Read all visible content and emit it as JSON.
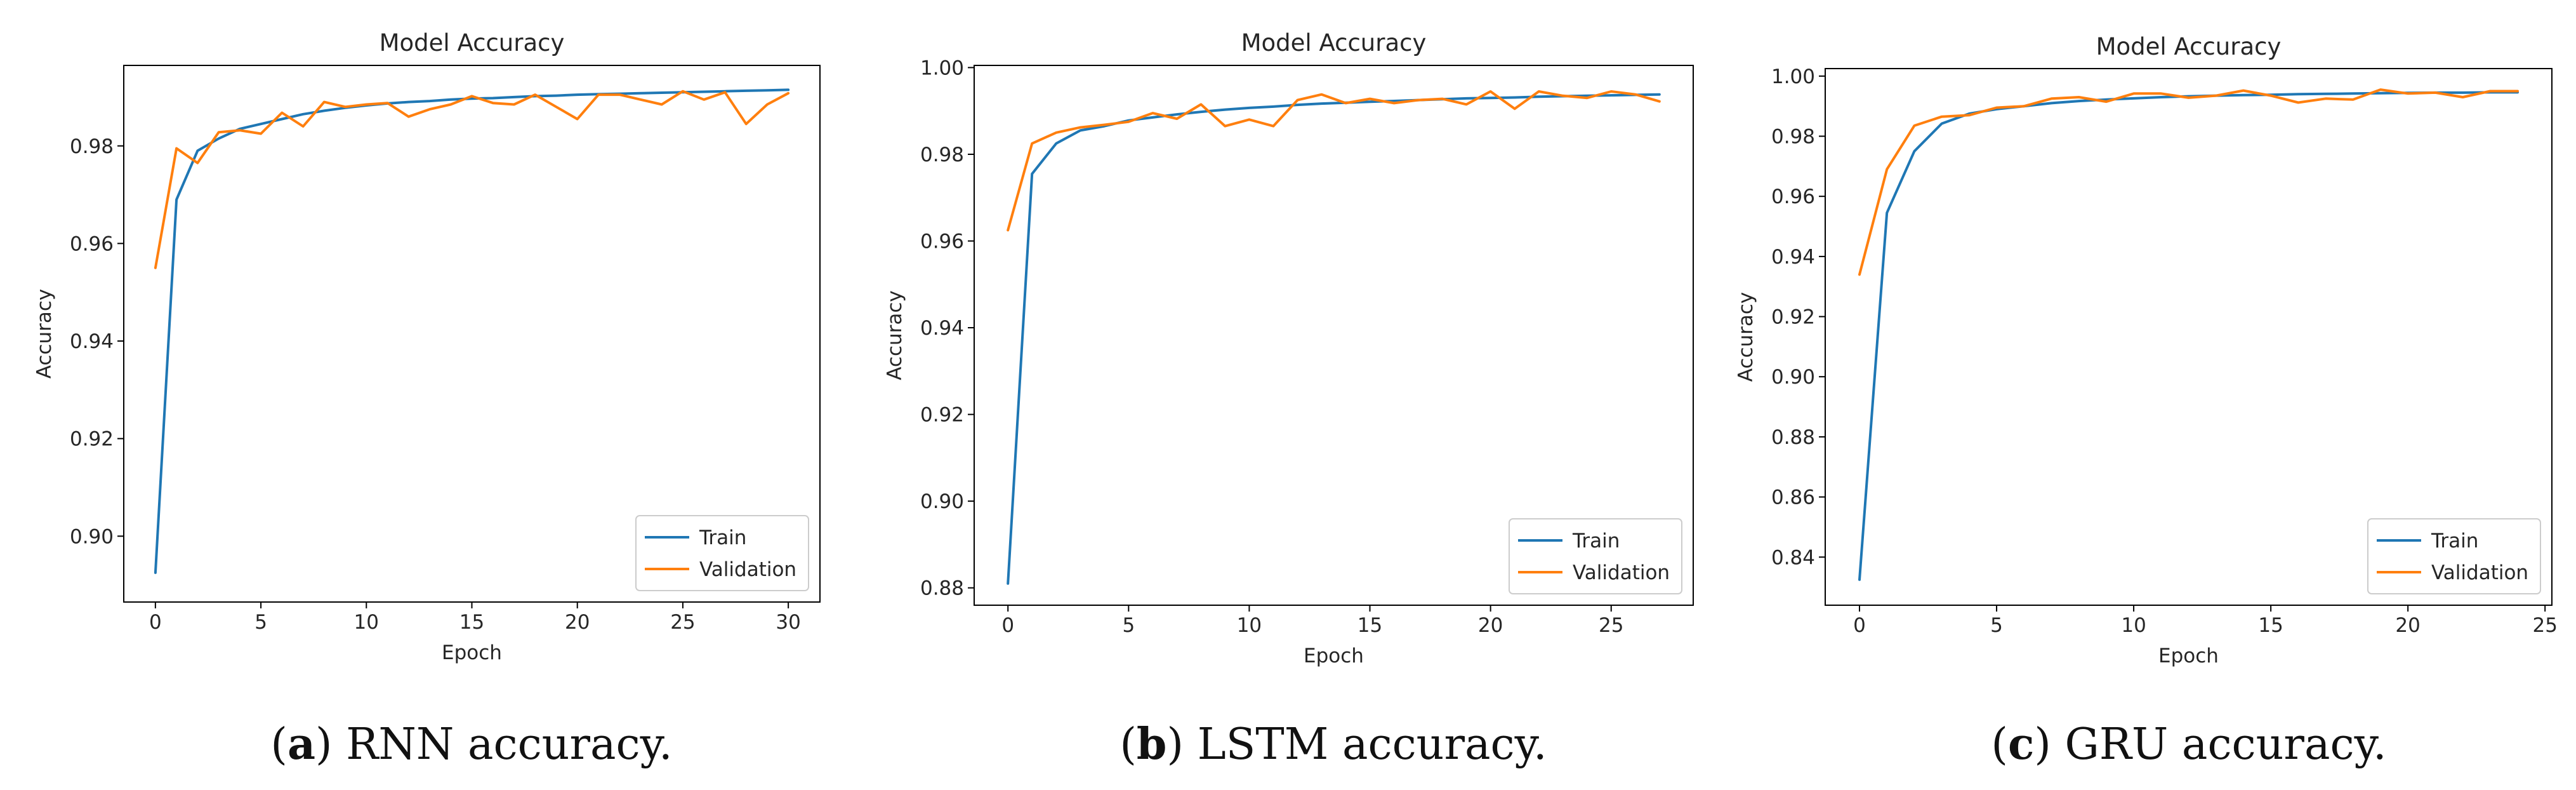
{
  "chart_data": [
    {
      "type": "line",
      "title": "Model Accuracy",
      "xlabel": "Epoch",
      "ylabel": "Accuracy",
      "xlim": [
        -1.5,
        31.5
      ],
      "ylim": [
        0.8865,
        0.9965
      ],
      "xticks": [
        0,
        5,
        10,
        15,
        20,
        25,
        30
      ],
      "yticks": [
        0.9,
        0.92,
        0.94,
        0.96,
        0.98
      ],
      "ytick_labels": [
        "0.90",
        "0.92",
        "0.94",
        "0.96",
        "0.98"
      ],
      "legend_position": "lower-right",
      "caption_letter": "a",
      "caption_text": "RNN accuracy.",
      "series": [
        {
          "name": "Train",
          "color": "#1f77b4",
          "x": [
            0,
            1,
            2,
            3,
            4,
            5,
            6,
            7,
            8,
            9,
            10,
            11,
            12,
            13,
            14,
            15,
            16,
            17,
            18,
            19,
            20,
            21,
            22,
            23,
            24,
            25,
            26,
            27,
            28,
            29,
            30
          ],
          "values": [
            0.8925,
            0.969,
            0.979,
            0.9815,
            0.9835,
            0.9845,
            0.9855,
            0.9865,
            0.9872,
            0.9878,
            0.9883,
            0.9887,
            0.989,
            0.9892,
            0.9895,
            0.9897,
            0.9898,
            0.99,
            0.9902,
            0.9903,
            0.9905,
            0.9906,
            0.9907,
            0.9908,
            0.9909,
            0.991,
            0.9911,
            0.9912,
            0.9913,
            0.9914,
            0.9915
          ]
        },
        {
          "name": "Validation",
          "color": "#ff7f0e",
          "x": [
            0,
            1,
            2,
            3,
            4,
            5,
            6,
            7,
            8,
            9,
            10,
            11,
            12,
            13,
            14,
            15,
            16,
            17,
            18,
            19,
            20,
            21,
            22,
            23,
            24,
            25,
            26,
            27,
            28,
            29,
            30
          ],
          "values": [
            0.955,
            0.9795,
            0.9765,
            0.9828,
            0.9832,
            0.9825,
            0.9868,
            0.984,
            0.989,
            0.988,
            0.9885,
            0.9888,
            0.986,
            0.9875,
            0.9885,
            0.9902,
            0.9888,
            0.9885,
            0.9905,
            0.988,
            0.9855,
            0.9905,
            0.9905,
            0.9895,
            0.9885,
            0.9912,
            0.9895,
            0.991,
            0.9845,
            0.9885,
            0.9908
          ]
        }
      ]
    },
    {
      "type": "line",
      "title": "Model Accuracy",
      "xlabel": "Epoch",
      "ylabel": "Accuracy",
      "xlim": [
        -1.4,
        28.4
      ],
      "ylim": [
        0.876,
        1.0005
      ],
      "xticks": [
        0,
        5,
        10,
        15,
        20,
        25
      ],
      "yticks": [
        0.88,
        0.9,
        0.92,
        0.94,
        0.96,
        0.98,
        1.0
      ],
      "ytick_labels": [
        "0.88",
        "0.90",
        "0.92",
        "0.94",
        "0.96",
        "0.98",
        "1.00"
      ],
      "legend_position": "lower-right",
      "caption_letter": "b",
      "caption_text": "LSTM accuracy.",
      "series": [
        {
          "name": "Train",
          "color": "#1f77b4",
          "x": [
            0,
            1,
            2,
            3,
            4,
            5,
            6,
            7,
            8,
            9,
            10,
            11,
            12,
            13,
            14,
            15,
            16,
            17,
            18,
            19,
            20,
            21,
            22,
            23,
            24,
            25,
            26,
            27
          ],
          "values": [
            0.881,
            0.9755,
            0.9825,
            0.9855,
            0.9865,
            0.9878,
            0.9885,
            0.9892,
            0.9898,
            0.9903,
            0.9907,
            0.991,
            0.9914,
            0.9917,
            0.9919,
            0.9921,
            0.9923,
            0.9925,
            0.9927,
            0.9929,
            0.993,
            0.9931,
            0.9933,
            0.9934,
            0.9935,
            0.9936,
            0.9937,
            0.9938
          ]
        },
        {
          "name": "Validation",
          "color": "#ff7f0e",
          "x": [
            0,
            1,
            2,
            3,
            4,
            5,
            6,
            7,
            8,
            9,
            10,
            11,
            12,
            13,
            14,
            15,
            16,
            17,
            18,
            19,
            20,
            21,
            22,
            23,
            24,
            25,
            26,
            27
          ],
          "values": [
            0.9625,
            0.9825,
            0.985,
            0.9862,
            0.9868,
            0.9875,
            0.9895,
            0.9882,
            0.9915,
            0.9865,
            0.988,
            0.9865,
            0.9925,
            0.9938,
            0.9918,
            0.9928,
            0.9918,
            0.9925,
            0.9928,
            0.9915,
            0.9945,
            0.9905,
            0.9945,
            0.9935,
            0.993,
            0.9945,
            0.9938,
            0.9922
          ]
        }
      ]
    },
    {
      "type": "line",
      "title": "Model Accuracy",
      "xlabel": "Epoch",
      "ylabel": "Accuracy",
      "xlim": [
        -1.25,
        25.25
      ],
      "ylim": [
        0.824,
        1.0025
      ],
      "xticks": [
        0,
        5,
        10,
        15,
        20,
        25
      ],
      "yticks": [
        0.84,
        0.86,
        0.88,
        0.9,
        0.92,
        0.94,
        0.96,
        0.98,
        1.0
      ],
      "ytick_labels": [
        "0.84",
        "0.86",
        "0.88",
        "0.90",
        "0.92",
        "0.94",
        "0.96",
        "0.98",
        "1.00"
      ],
      "legend_position": "lower-right",
      "caption_letter": "c",
      "caption_text": "GRU accuracy.",
      "series": [
        {
          "name": "Train",
          "color": "#1f77b4",
          "x": [
            0,
            1,
            2,
            3,
            4,
            5,
            6,
            7,
            8,
            9,
            10,
            11,
            12,
            13,
            14,
            15,
            16,
            17,
            18,
            19,
            20,
            21,
            22,
            23,
            24
          ],
          "values": [
            0.8325,
            0.9545,
            0.975,
            0.9842,
            0.9875,
            0.989,
            0.99,
            0.991,
            0.9917,
            0.9922,
            0.9926,
            0.993,
            0.9933,
            0.9935,
            0.9937,
            0.9938,
            0.994,
            0.9941,
            0.9942,
            0.9943,
            0.9944,
            0.9945,
            0.9945,
            0.9946,
            0.9946
          ]
        },
        {
          "name": "Validation",
          "color": "#ff7f0e",
          "x": [
            0,
            1,
            2,
            3,
            4,
            5,
            6,
            7,
            8,
            9,
            10,
            11,
            12,
            13,
            14,
            15,
            16,
            17,
            18,
            19,
            20,
            21,
            22,
            23,
            24
          ],
          "values": [
            0.934,
            0.969,
            0.9835,
            0.9865,
            0.987,
            0.9895,
            0.99,
            0.9925,
            0.993,
            0.9915,
            0.9942,
            0.9942,
            0.9928,
            0.9935,
            0.9952,
            0.9935,
            0.9912,
            0.9925,
            0.9922,
            0.9955,
            0.9942,
            0.9945,
            0.993,
            0.995,
            0.995
          ]
        }
      ]
    }
  ]
}
